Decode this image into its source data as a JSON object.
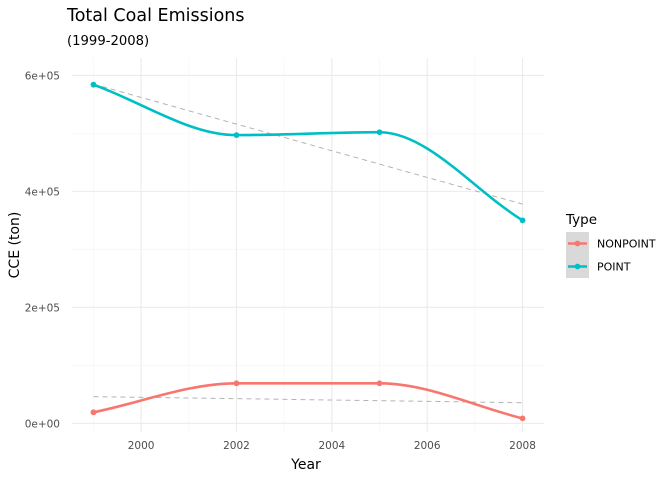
{
  "chart_data": {
    "type": "line",
    "title": "Total Coal Emissions",
    "subtitle": "(1999-2008)",
    "xlabel": "Year",
    "ylabel": "CCE (ton)",
    "x": [
      1999,
      2002,
      2005,
      2008
    ],
    "xlim": [
      1998.55,
      2008.45
    ],
    "ylim": [
      -15000,
      630000
    ],
    "x_ticks": [
      2000,
      2002,
      2004,
      2006,
      2008
    ],
    "x_tick_labels": [
      "2000",
      "2002",
      "2004",
      "2006",
      "2008"
    ],
    "y_ticks": [
      0,
      200000,
      400000,
      600000
    ],
    "y_tick_labels": [
      "0e+00",
      "2e+05",
      "4e+05",
      "6e+05"
    ],
    "grid": true,
    "legend": {
      "title": "Type",
      "position": "right",
      "entries": [
        "NONPOINT",
        "POINT"
      ]
    },
    "series": [
      {
        "name": "NONPOINT",
        "color": "#F8766D",
        "values": [
          19000,
          69000,
          69000,
          8500
        ],
        "trend": [
          46000,
          35500
        ]
      },
      {
        "name": "POINT",
        "color": "#00BFC4",
        "values": [
          584000,
          497000,
          502000,
          350000
        ],
        "trend": [
          585000,
          378000
        ]
      }
    ],
    "trend_line_color": "#b3b3b3",
    "trend_line_style": "dashed"
  }
}
